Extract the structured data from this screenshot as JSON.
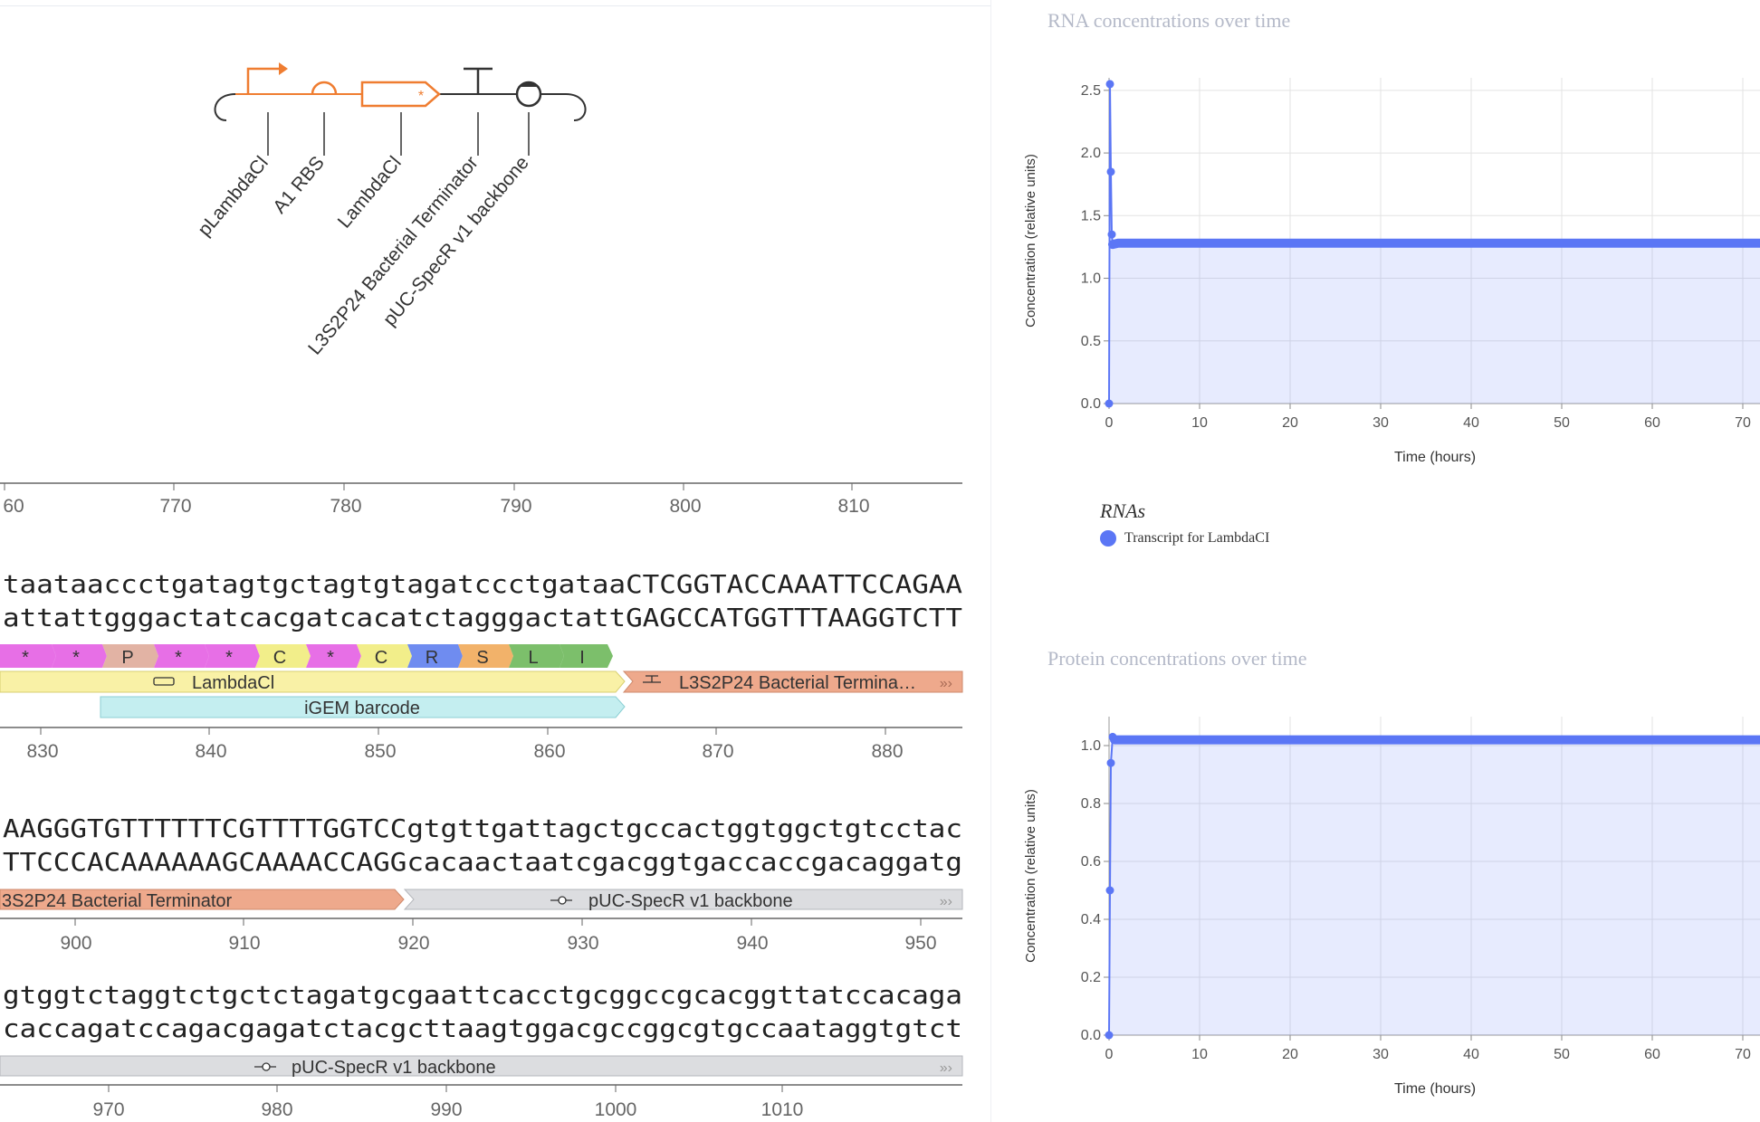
{
  "glyph_labels": [
    "pLambdaCl",
    "A1 RBS",
    "LambdaCl",
    "L3S2P24 Bacterial Terminator",
    "pUC-SpecR v1 backbone"
  ],
  "rows": [
    {
      "ruler": [
        "60",
        "770",
        "780",
        "790",
        "800",
        "810"
      ],
      "seq_top": "",
      "seq_bottom": "",
      "features": []
    },
    {
      "seq_top": "taataaccctgatagtgctagtgtagatccctgataaCTCGGTACCAAATTCCAGAA",
      "seq_bottom": "attattgggactatcacgatcacatctagggactattGAGCCATGGTTTAAGGTCTT",
      "aa": [
        "*",
        "*",
        "P",
        "*",
        "*",
        "C",
        "*",
        "C",
        "R",
        "S",
        "L",
        "I"
      ],
      "features": [
        "LambdaCl",
        "L3S2P24 Bacterial Termina…",
        "iGEM barcode"
      ],
      "ruler": [
        "830",
        "840",
        "850",
        "860",
        "870",
        "880"
      ]
    },
    {
      "seq_top": "AAGGGTGTTTTTTCGTTTTGGTCCgtgttgattagctgccactggtggctgtcctac",
      "seq_bottom": "TTCCCACAAAAAAGCAAAACCAGGcacaactaatcgacggtgaccaccgacaggatg",
      "features": [
        "3S2P24 Bacterial Terminator",
        "pUC-SpecR v1 backbone"
      ],
      "ruler": [
        "900",
        "910",
        "920",
        "930",
        "940",
        "950"
      ]
    },
    {
      "seq_top": "gtggtctaggtctgctctagatgcgaattcacctgcggccgcacggttatccacaga",
      "seq_bottom": "caccagatccagacgagatctacgcttaagtggacgccggcgtgccaataggtgtct",
      "features": [
        "pUC-SpecR v1 backbone"
      ],
      "ruler": [
        "970",
        "980",
        "990",
        "1000",
        "1010"
      ]
    }
  ],
  "colors": {
    "glyph": "#ef7d31",
    "magenta": "#e76fe6",
    "pink": "#e2b3a4",
    "yellow": "#f2ee8a",
    "blue": "#6f8cf0",
    "orange": "#f2b26a",
    "green": "#7cbf6b",
    "cds": "#f9f1a6",
    "terminator": "#eea98c",
    "barcode": "#c4eef0",
    "backbone": "#dcdde0",
    "series": "#5b76f5"
  },
  "rna_chart": {
    "title": "RNA concentrations over time",
    "legend_title": "RNAs",
    "chart_data": {
      "type": "line",
      "title": "RNA concentrations over time",
      "xlabel": "Time (hours)",
      "ylabel": "Concentration (relative units)",
      "xlim": [
        0,
        72
      ],
      "ylim": [
        0,
        2.6
      ],
      "xticks": [
        0,
        10,
        20,
        30,
        40,
        50,
        60,
        70
      ],
      "yticks": [
        "0.0",
        "0.5",
        "1.0",
        "1.5",
        "2.0",
        "2.5"
      ],
      "series": [
        {
          "name": "Transcript for LambdaCI",
          "x": [
            0,
            0.1,
            0.2,
            0.3,
            0.4,
            1,
            5,
            10,
            20,
            30,
            40,
            50,
            60,
            72
          ],
          "y": [
            0,
            2.55,
            1.85,
            1.35,
            1.27,
            1.28,
            1.28,
            1.28,
            1.28,
            1.28,
            1.28,
            1.28,
            1.28,
            1.28
          ]
        }
      ],
      "grid": true,
      "legend": "bottom"
    }
  },
  "protein_chart": {
    "title": "Protein concentrations over time",
    "chart_data": {
      "type": "line",
      "title": "Protein concentrations over time",
      "xlabel": "Time (hours)",
      "ylabel": "Concentration (relative units)",
      "xlim": [
        0,
        72
      ],
      "ylim": [
        0,
        1.1
      ],
      "xticks": [
        0,
        10,
        20,
        30,
        40,
        50,
        60,
        70
      ],
      "yticks": [
        "0.0",
        "0.2",
        "0.4",
        "0.6",
        "0.8",
        "1.0"
      ],
      "series": [
        {
          "x": [
            0,
            0.1,
            0.2,
            0.4,
            0.6,
            1,
            5,
            10,
            20,
            30,
            40,
            50,
            60,
            72
          ],
          "y": [
            0,
            0.5,
            0.94,
            1.03,
            1.02,
            1.02,
            1.02,
            1.02,
            1.02,
            1.02,
            1.02,
            1.02,
            1.02,
            1.02
          ]
        }
      ],
      "grid": true
    }
  }
}
